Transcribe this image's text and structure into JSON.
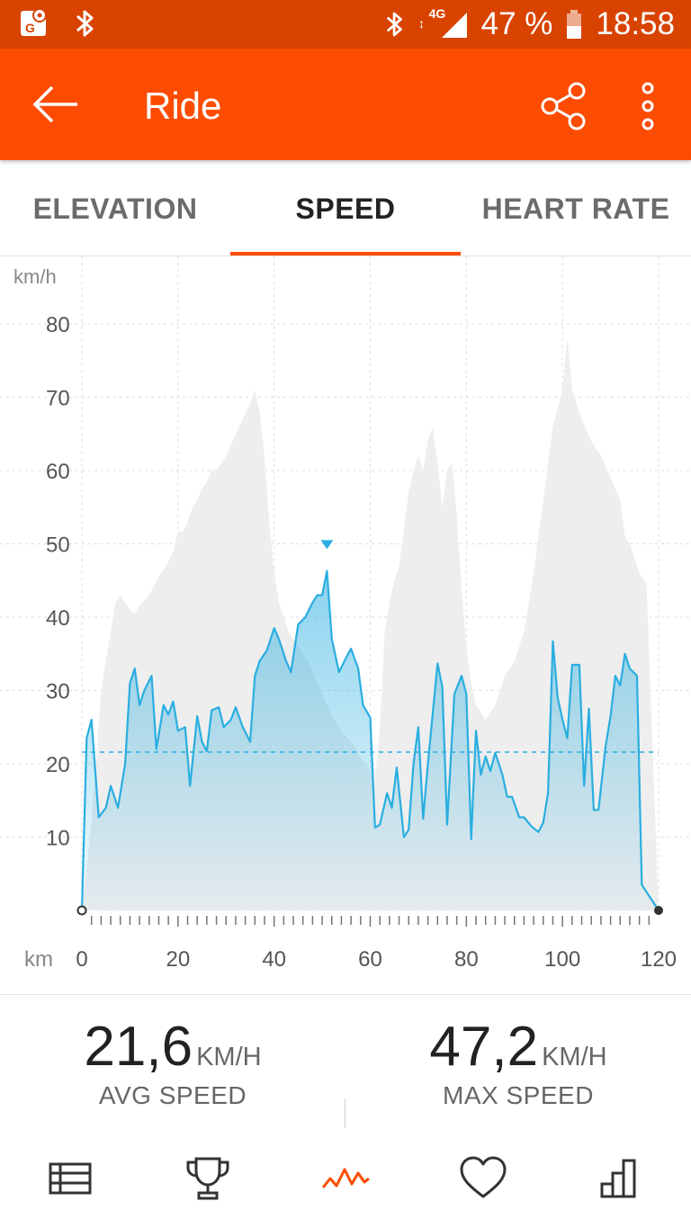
{
  "status_bar": {
    "network": "4G",
    "battery": "47 %",
    "time": "18:58"
  },
  "app_bar": {
    "title": "Ride"
  },
  "tabs": [
    {
      "label": "ELEVATION",
      "active": false
    },
    {
      "label": "SPEED",
      "active": true
    },
    {
      "label": "HEART RATE",
      "active": false
    }
  ],
  "chart_data": {
    "type": "area",
    "ylabel": "km/h",
    "xlabel": "km",
    "ylim": [
      0,
      80
    ],
    "xlim": [
      0,
      120
    ],
    "yticks": [
      "10",
      "20",
      "30",
      "40",
      "50",
      "60",
      "70",
      "80"
    ],
    "xticks": [
      "0",
      "20",
      "40",
      "60",
      "80",
      "100",
      "120"
    ],
    "average_line": 21.6,
    "max_marker": {
      "x": 51,
      "y": 47.2
    },
    "colors": {
      "speed": "#2aaee0",
      "elevation": "#eeeeee",
      "grid": "#dcdcdc"
    },
    "series": [
      {
        "values": [
          [
            0,
            0
          ],
          [
            1,
            23.5
          ],
          [
            2,
            26
          ],
          [
            3.5,
            12.7
          ],
          [
            5,
            14
          ],
          [
            6,
            17
          ],
          [
            7.5,
            14
          ],
          [
            9,
            20
          ],
          [
            10,
            31
          ],
          [
            11,
            33
          ],
          [
            12,
            28
          ],
          [
            13,
            30
          ],
          [
            14.5,
            32
          ],
          [
            15.5,
            22
          ],
          [
            17,
            28
          ],
          [
            18,
            26.7
          ],
          [
            19,
            28.5
          ],
          [
            20,
            24.5
          ],
          [
            21.5,
            25
          ],
          [
            22.5,
            17
          ],
          [
            24,
            26.5
          ],
          [
            25,
            23
          ],
          [
            26,
            21.7
          ],
          [
            27,
            27.3
          ],
          [
            28.5,
            27.7
          ],
          [
            29.5,
            25
          ],
          [
            31,
            26
          ],
          [
            32,
            27.7
          ],
          [
            33.5,
            25
          ],
          [
            35,
            23
          ],
          [
            36,
            32
          ],
          [
            37,
            34
          ],
          [
            38.5,
            35.5
          ],
          [
            40,
            38.5
          ],
          [
            41,
            37
          ],
          [
            42.5,
            34
          ],
          [
            43.5,
            32.5
          ],
          [
            45,
            39
          ],
          [
            46.5,
            40
          ],
          [
            48,
            42
          ],
          [
            49,
            43
          ],
          [
            50,
            43
          ],
          [
            51,
            46.3
          ],
          [
            52,
            37
          ],
          [
            53.5,
            32.5
          ],
          [
            55,
            34.5
          ],
          [
            56,
            35.7
          ],
          [
            57.5,
            33
          ],
          [
            58.5,
            28
          ],
          [
            60,
            26.3
          ],
          [
            61,
            11.3
          ],
          [
            62,
            11.7
          ],
          [
            63.5,
            16
          ],
          [
            64.5,
            14
          ],
          [
            65.5,
            19.5
          ],
          [
            67,
            10
          ],
          [
            68,
            11
          ],
          [
            69,
            20
          ],
          [
            70,
            25
          ],
          [
            71,
            12.5
          ],
          [
            72,
            20
          ],
          [
            74,
            33.7
          ],
          [
            75,
            30.5
          ],
          [
            76,
            11.7
          ],
          [
            77.5,
            29.5
          ],
          [
            79,
            32
          ],
          [
            80,
            29.5
          ],
          [
            81,
            9.7
          ],
          [
            82,
            24.5
          ],
          [
            83,
            18.5
          ],
          [
            84,
            21
          ],
          [
            85,
            19
          ],
          [
            86,
            21.5
          ],
          [
            87.5,
            18.5
          ],
          [
            88.5,
            15.5
          ],
          [
            89.5,
            15.5
          ],
          [
            91,
            12.7
          ],
          [
            92,
            12.7
          ],
          [
            93.5,
            11.5
          ],
          [
            95,
            10.7
          ],
          [
            96,
            12
          ],
          [
            97,
            16
          ],
          [
            98,
            36.7
          ],
          [
            99,
            29
          ],
          [
            100,
            26
          ],
          [
            101,
            23.5
          ],
          [
            102,
            33.5
          ],
          [
            103.5,
            33.5
          ],
          [
            104.5,
            17
          ],
          [
            105.5,
            27.5
          ],
          [
            106.5,
            13.7
          ],
          [
            107.5,
            13.7
          ],
          [
            109,
            22.5
          ],
          [
            110,
            26.5
          ],
          [
            111,
            32
          ],
          [
            112,
            30.7
          ],
          [
            113,
            35
          ],
          [
            114,
            33
          ],
          [
            115.5,
            32
          ],
          [
            116.5,
            3.5
          ],
          [
            120,
            0
          ]
        ]
      },
      {
        "values": [
          [
            0,
            0
          ],
          [
            2,
            12
          ],
          [
            4,
            30
          ],
          [
            6,
            38
          ],
          [
            7,
            42
          ],
          [
            8,
            43
          ],
          [
            9,
            42
          ],
          [
            10,
            41
          ],
          [
            11,
            40.5
          ],
          [
            12,
            41.5
          ],
          [
            14,
            43
          ],
          [
            16,
            45.5
          ],
          [
            18,
            47.5
          ],
          [
            19,
            49
          ],
          [
            20,
            51.7
          ],
          [
            21,
            51.7
          ],
          [
            22,
            53
          ],
          [
            23,
            55
          ],
          [
            24,
            56
          ],
          [
            25,
            57.5
          ],
          [
            26,
            58.5
          ],
          [
            27,
            60
          ],
          [
            28,
            60
          ],
          [
            30,
            62
          ],
          [
            32,
            65
          ],
          [
            34,
            67.7
          ],
          [
            35,
            69
          ],
          [
            36,
            71
          ],
          [
            37,
            68
          ],
          [
            38,
            62
          ],
          [
            39,
            53
          ],
          [
            40,
            46
          ],
          [
            41,
            42
          ],
          [
            42,
            40
          ],
          [
            43,
            38
          ],
          [
            44,
            37
          ],
          [
            45,
            36
          ],
          [
            46,
            35
          ],
          [
            47,
            34
          ],
          [
            48,
            32.5
          ],
          [
            49,
            31
          ],
          [
            50,
            29.5
          ],
          [
            51,
            28
          ],
          [
            52,
            26.5
          ],
          [
            54,
            24.5
          ],
          [
            56,
            23
          ],
          [
            58,
            21
          ],
          [
            60,
            19
          ],
          [
            61,
            18
          ],
          [
            62,
            25
          ],
          [
            63,
            38
          ],
          [
            64,
            42
          ],
          [
            65,
            45
          ],
          [
            66,
            47
          ],
          [
            67,
            52
          ],
          [
            68,
            57
          ],
          [
            69,
            60
          ],
          [
            70,
            62
          ],
          [
            71,
            60
          ],
          [
            72,
            64
          ],
          [
            73,
            66
          ],
          [
            74,
            61
          ],
          [
            75,
            55
          ],
          [
            76,
            60
          ],
          [
            77,
            61
          ],
          [
            78,
            54
          ],
          [
            79,
            44
          ],
          [
            80,
            36
          ],
          [
            81,
            31
          ],
          [
            82,
            28
          ],
          [
            83,
            27
          ],
          [
            84,
            26
          ],
          [
            85,
            27
          ],
          [
            86,
            28
          ],
          [
            87,
            30
          ],
          [
            88,
            32
          ],
          [
            90,
            34
          ],
          [
            92,
            38
          ],
          [
            94,
            46
          ],
          [
            96,
            56
          ],
          [
            98,
            66
          ],
          [
            100,
            71
          ],
          [
            101,
            78
          ],
          [
            102,
            71
          ],
          [
            103,
            69
          ],
          [
            104,
            67
          ],
          [
            106,
            64
          ],
          [
            108,
            62
          ],
          [
            110,
            59
          ],
          [
            112,
            56
          ],
          [
            113,
            51
          ],
          [
            114,
            50
          ],
          [
            115,
            48
          ],
          [
            116,
            46
          ],
          [
            117,
            45
          ],
          [
            117.5,
            44.5
          ],
          [
            120,
            0
          ]
        ]
      }
    ]
  },
  "stats": [
    {
      "value": "21,6",
      "unit": "KM/H",
      "label": "AVG SPEED"
    },
    {
      "value": "47,2",
      "unit": "KM/H",
      "label": "MAX SPEED"
    }
  ],
  "bottom_nav": [
    {
      "name": "overview-icon",
      "active": false
    },
    {
      "name": "trophy-icon",
      "active": false
    },
    {
      "name": "analysis-icon",
      "active": true
    },
    {
      "name": "heart-icon",
      "active": false
    },
    {
      "name": "bar-chart-icon",
      "active": false
    }
  ]
}
